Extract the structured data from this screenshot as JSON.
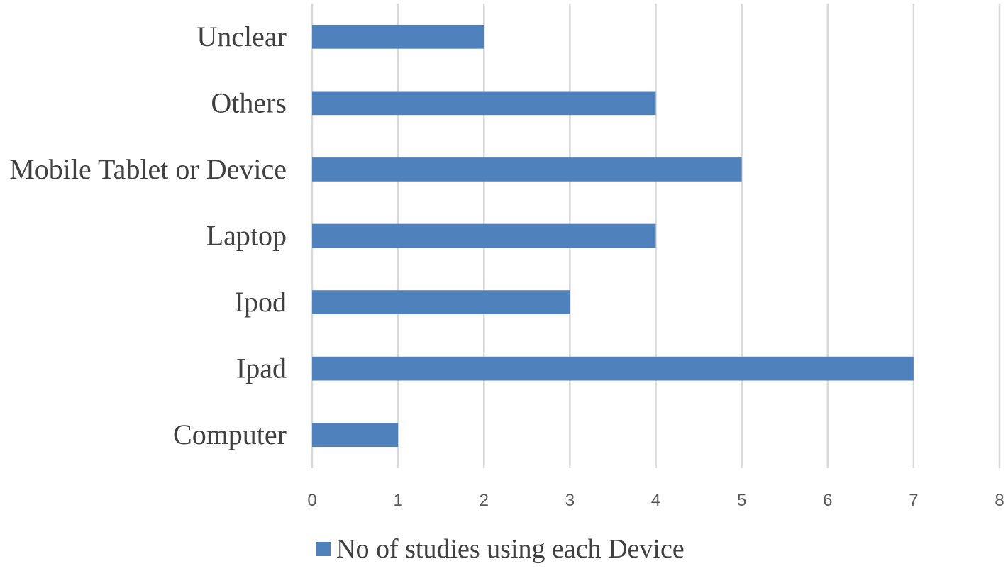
{
  "chart_data": {
    "type": "bar",
    "orientation": "horizontal",
    "categories": [
      "Computer",
      "Ipad",
      "Ipod",
      "Laptop",
      "Mobile Tablet or Device",
      "Others",
      "Unclear"
    ],
    "series": [
      {
        "name": "No of studies using each Device",
        "values": [
          1,
          7,
          3,
          4,
          5,
          4,
          2
        ],
        "color": "#4F81BD"
      }
    ],
    "xlim": [
      0,
      8
    ],
    "xticks": [
      "0",
      "1",
      "2",
      "3",
      "4",
      "5",
      "6",
      "7",
      "8"
    ],
    "grid": true,
    "grid_color": "#D9D9D9",
    "legend_position": "bottom",
    "title": "",
    "xlabel": "",
    "ylabel": ""
  }
}
